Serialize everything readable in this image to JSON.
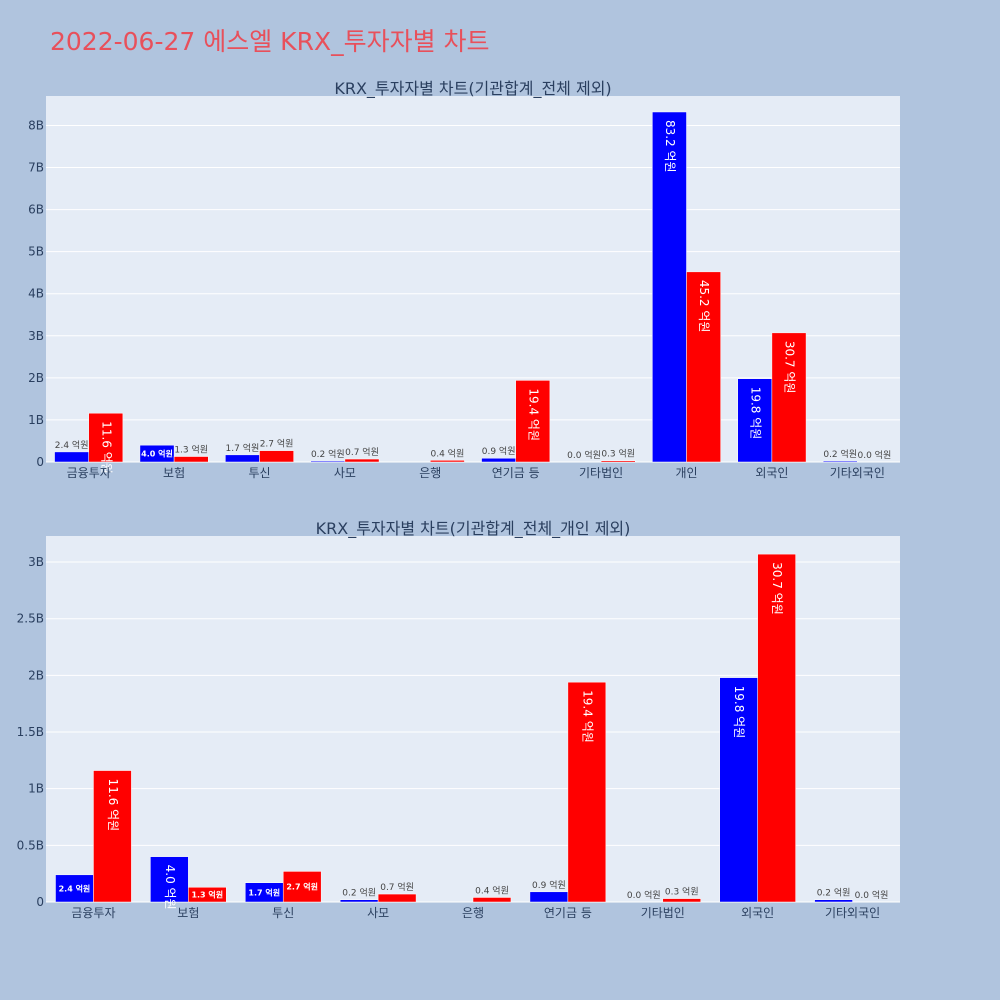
{
  "page": {
    "title": "2022-06-27 에스엘 KRX_투자자별 차트"
  },
  "colors": {
    "background": "#b0c4de",
    "plot_background": "#e5ecf6",
    "buy": "#0000ff",
    "sell": "#ff0000",
    "title": "#e8505b",
    "text": "#2a3f5f"
  },
  "chart_data": [
    {
      "type": "bar",
      "title": "KRX_투자자별 차트(기관합계_전체 제외)",
      "categories": [
        "금융투자",
        "보험",
        "투신",
        "사모",
        "은행",
        "연기금 등",
        "기타법인",
        "개인",
        "외국인",
        "기타외국인"
      ],
      "series": [
        {
          "color": "blue",
          "values": [
            240000000,
            400000000,
            170000000,
            20000000,
            0,
            90000000,
            0,
            8320000000,
            1980000000,
            20000000
          ],
          "labels": [
            "2.4 억원",
            "4.0 억원",
            "1.7 억원",
            "0.2 억원",
            "",
            "0.9 억원",
            "0.0 억원",
            "83.2 억원",
            "19.8 억원",
            "0.2 억원"
          ]
        },
        {
          "color": "red",
          "values": [
            1160000000,
            130000000,
            270000000,
            70000000,
            40000000,
            1940000000,
            30000000,
            4520000000,
            3070000000,
            0
          ],
          "labels": [
            "11.6 억원",
            "1.3 억원",
            "2.7 억원",
            "0.7 억원",
            "0.4 억원",
            "19.4 억원",
            "0.3 억원",
            "45.2 억원",
            "30.7 억원",
            "0.0 억원"
          ]
        }
      ],
      "yticks": [
        0,
        1000000000,
        2000000000,
        3000000000,
        4000000000,
        5000000000,
        6000000000,
        7000000000,
        8000000000
      ],
      "ytick_labels": [
        "0",
        "1B",
        "2B",
        "3B",
        "4B",
        "5B",
        "6B",
        "7B",
        "8B"
      ],
      "ylim": [
        0,
        8700000000
      ],
      "grid": true,
      "legend": "none"
    },
    {
      "type": "bar",
      "title": "KRX_투자자별 차트(기관합계_전체_개인 제외)",
      "categories": [
        "금융투자",
        "보험",
        "투신",
        "사모",
        "은행",
        "연기금 등",
        "기타법인",
        "외국인",
        "기타외국인"
      ],
      "series": [
        {
          "color": "blue",
          "values": [
            240000000,
            400000000,
            170000000,
            20000000,
            0,
            90000000,
            0,
            1980000000,
            20000000
          ],
          "labels": [
            "2.4 억원",
            "4.0 억원",
            "1.7 억원",
            "0.2 억원",
            "",
            "0.9 억원",
            "0.0 억원",
            "19.8 억원",
            "0.2 억원"
          ]
        },
        {
          "color": "red",
          "values": [
            1160000000,
            130000000,
            270000000,
            70000000,
            40000000,
            1940000000,
            30000000,
            3070000000,
            0
          ],
          "labels": [
            "11.6 억원",
            "1.3 억원",
            "2.7 억원",
            "0.7 억원",
            "0.4 억원",
            "19.4 억원",
            "0.3 억원",
            "30.7 억원",
            "0.0 억원"
          ]
        }
      ],
      "yticks": [
        0,
        500000000,
        1000000000,
        1500000000,
        2000000000,
        2500000000,
        3000000000
      ],
      "ytick_labels": [
        "0",
        "0.5B",
        "1B",
        "1.5B",
        "2B",
        "2.5B",
        "3B"
      ],
      "ylim": [
        0,
        3230000000
      ],
      "grid": true,
      "legend": "none"
    }
  ]
}
